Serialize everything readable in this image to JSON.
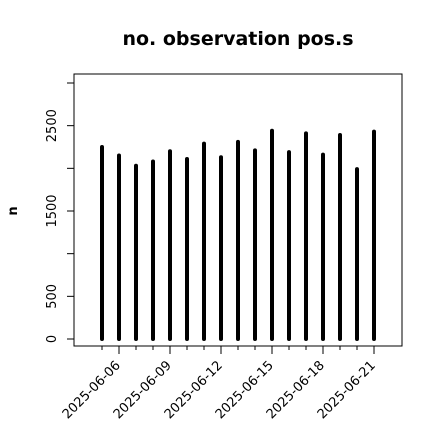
{
  "chart_data": {
    "type": "bar",
    "title": "no. observation pos.s",
    "xlabel": "",
    "ylabel": "n",
    "bar_style": "thin vertical lines (R type='h')",
    "x_dates": [
      "2025-06-05",
      "2025-06-06",
      "2025-06-07",
      "2025-06-08",
      "2025-06-09",
      "2025-06-10",
      "2025-06-11",
      "2025-06-12",
      "2025-06-13",
      "2025-06-14",
      "2025-06-15",
      "2025-06-16",
      "2025-06-17",
      "2025-06-18",
      "2025-06-19",
      "2025-06-20",
      "2025-06-21"
    ],
    "values": [
      2250,
      2150,
      2030,
      2080,
      2200,
      2110,
      2290,
      2130,
      2310,
      2210,
      2440,
      2190,
      2410,
      2160,
      2390,
      1990,
      2430
    ],
    "x_ticks": [
      "2025-06-06",
      "2025-06-09",
      "2025-06-12",
      "2025-06-15",
      "2025-06-18",
      "2025-06-21"
    ],
    "highlighted_tick": "2025-06-12",
    "y_ticks": [
      0,
      500,
      1500,
      2500
    ],
    "ylim": [
      0,
      3000
    ],
    "colors": {
      "bars": "#000000",
      "highlight_tick": "#228b22"
    },
    "grid": false,
    "legend": "none"
  }
}
